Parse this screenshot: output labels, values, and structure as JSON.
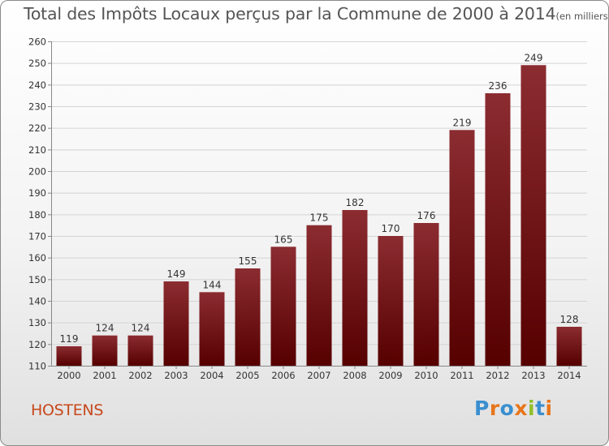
{
  "chart_data": {
    "type": "bar",
    "title": "Total des Impôts Locaux perçus par la Commune de 2000 à 2014",
    "unit_note": "(en milliers d'€)",
    "categories": [
      "2000",
      "2001",
      "2002",
      "2003",
      "2004",
      "2005",
      "2006",
      "2007",
      "2008",
      "2009",
      "2010",
      "2011",
      "2012",
      "2013",
      "2014"
    ],
    "values": [
      119,
      124,
      124,
      149,
      144,
      155,
      165,
      175,
      182,
      170,
      176,
      219,
      236,
      249,
      128
    ],
    "ylim": [
      110,
      260
    ],
    "yticks": [
      110,
      120,
      130,
      140,
      150,
      160,
      170,
      180,
      190,
      200,
      210,
      220,
      230,
      240,
      250,
      260
    ],
    "grid": true,
    "bar_color": "#7a1a1f"
  },
  "commune": "HOSTENS",
  "logo": {
    "text": "Proxiti",
    "letters": [
      {
        "ch": "P",
        "color": "#3a8fd0"
      },
      {
        "ch": "r",
        "color": "#e8761c"
      },
      {
        "ch": "o",
        "color": "#3a8fd0"
      },
      {
        "ch": "x",
        "color": "#e8761c"
      },
      {
        "ch": "i",
        "color": "#8fbf2a"
      },
      {
        "ch": "t",
        "color": "#3a8fd0"
      },
      {
        "ch": "i",
        "color": "#e8761c"
      }
    ]
  }
}
